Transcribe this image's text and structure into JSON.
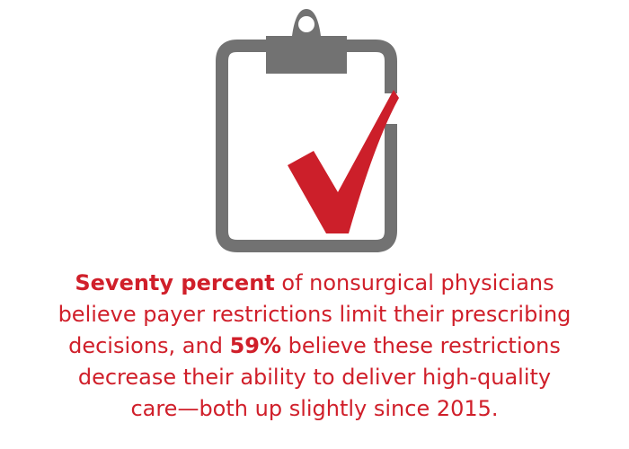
{
  "colors": {
    "clipboard": "#727272",
    "checkmark": "#cc1f2a",
    "text": "#d01f2a",
    "background": "#ffffff"
  },
  "icons": {
    "clipboard": "clipboard-icon",
    "checkmark": "checkmark-icon"
  },
  "caption": {
    "line1_bold": "Seventy percent",
    "line1_rest": " of nonsurgical physicians",
    "line2": "believe payer restrictions limit their prescribing",
    "line3_start": "decisions, and ",
    "line3_bold": "59%",
    "line3_rest": " believe these restrictions",
    "line4": "decrease their ability to deliver high-quality",
    "line5": "care—both up slightly since 2015."
  }
}
